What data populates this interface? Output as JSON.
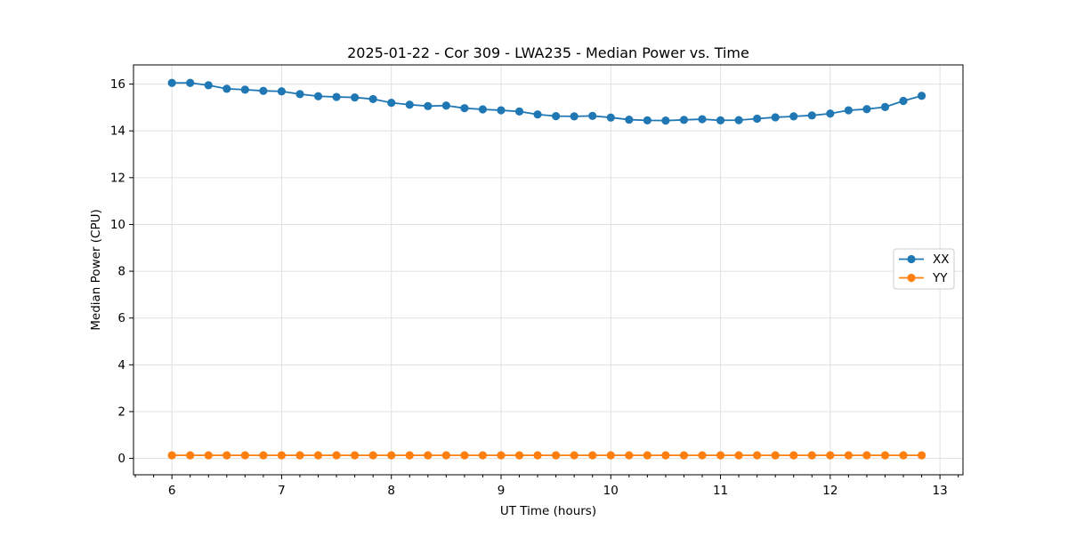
{
  "figure": {
    "background": "#ffffff"
  },
  "chart_data": {
    "type": "line",
    "title": "2025-01-22 - Cor 309 - LWA235 - Median Power vs. Time",
    "xlabel": "UT Time (hours)",
    "ylabel": "Median Power (CPU)",
    "xlim": [
      5.65,
      13.21
    ],
    "ylim": [
      -0.7,
      16.82
    ],
    "xticks": [
      6,
      7,
      8,
      9,
      10,
      11,
      12,
      13
    ],
    "yticks": [
      0,
      2,
      4,
      6,
      8,
      10,
      12,
      14,
      16
    ],
    "x_minor_step": 0.1666667,
    "grid": true,
    "grid_color": "#e0e0e0",
    "axis_color": "#000000",
    "legend": {
      "location": "center right",
      "border_color": "#cccccc",
      "background": "#ffffff"
    },
    "x": [
      6.0,
      6.1667,
      6.3333,
      6.5,
      6.6667,
      6.8333,
      7.0,
      7.1667,
      7.3333,
      7.5,
      7.6667,
      7.8333,
      8.0,
      8.1667,
      8.3333,
      8.5,
      8.6667,
      8.8333,
      9.0,
      9.1667,
      9.3333,
      9.5,
      9.6667,
      9.8333,
      10.0,
      10.1667,
      10.3333,
      10.5,
      10.6667,
      10.8333,
      11.0,
      11.1667,
      11.3333,
      11.5,
      11.6667,
      11.8333,
      12.0,
      12.1667,
      12.3333,
      12.5,
      12.6667,
      12.8333
    ],
    "series": [
      {
        "name": "XX",
        "color": "#1f77b4",
        "values": [
          16.05,
          16.05,
          15.95,
          15.8,
          15.76,
          15.71,
          15.69,
          15.57,
          15.48,
          15.45,
          15.43,
          15.36,
          15.2,
          15.12,
          15.06,
          15.08,
          14.97,
          14.92,
          14.88,
          14.83,
          14.7,
          14.63,
          14.62,
          14.64,
          14.57,
          14.48,
          14.45,
          14.44,
          14.47,
          14.5,
          14.45,
          14.46,
          14.52,
          14.58,
          14.62,
          14.66,
          14.74,
          14.88,
          14.93,
          15.02,
          15.28,
          15.5
        ]
      },
      {
        "name": "YY",
        "color": "#ff7f0e",
        "values": [
          0.13,
          0.13,
          0.13,
          0.13,
          0.13,
          0.13,
          0.13,
          0.13,
          0.13,
          0.13,
          0.13,
          0.13,
          0.13,
          0.13,
          0.13,
          0.13,
          0.13,
          0.13,
          0.13,
          0.13,
          0.13,
          0.13,
          0.13,
          0.13,
          0.13,
          0.13,
          0.13,
          0.13,
          0.13,
          0.13,
          0.13,
          0.13,
          0.13,
          0.13,
          0.13,
          0.13,
          0.13,
          0.13,
          0.13,
          0.13,
          0.13,
          0.13
        ]
      }
    ]
  }
}
